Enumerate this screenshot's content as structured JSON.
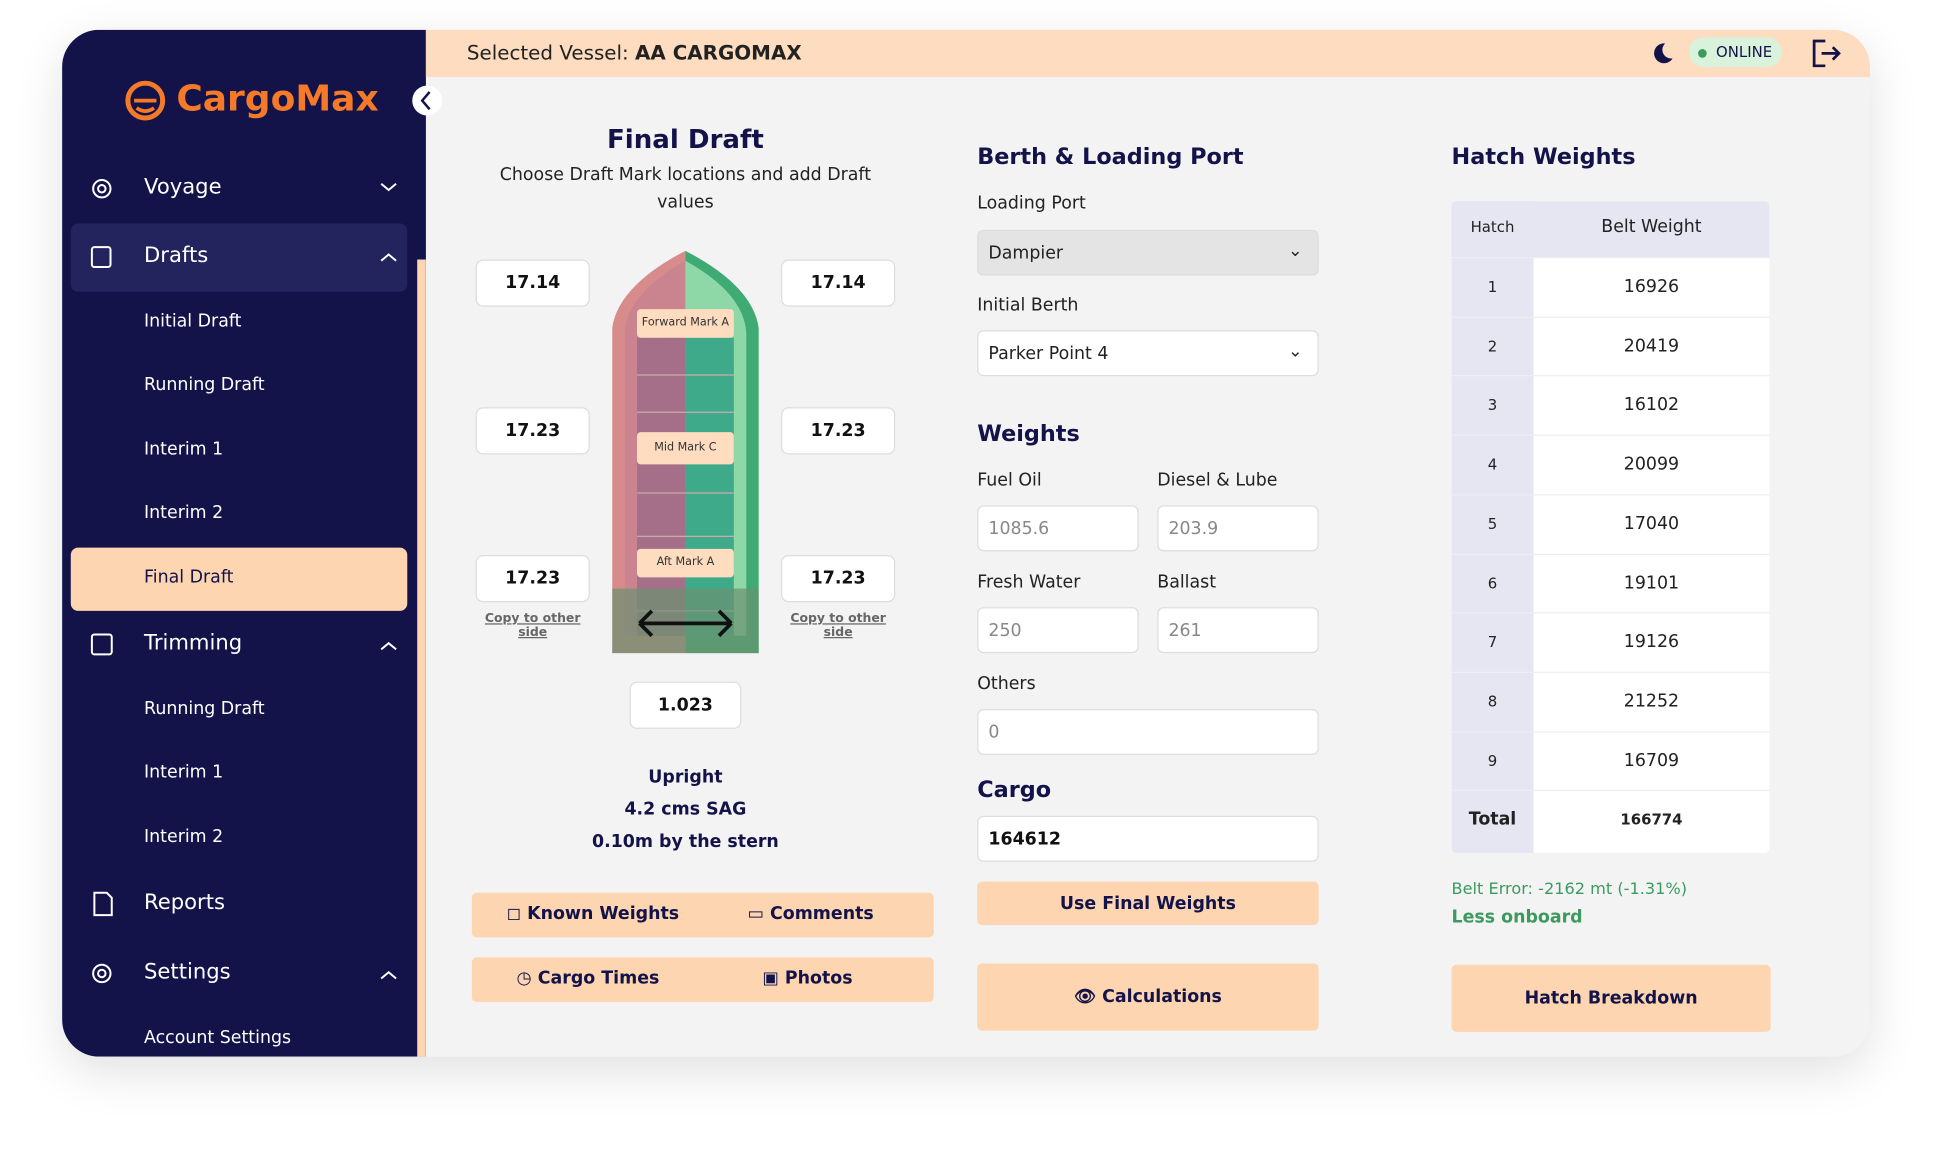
{
  "header": {
    "vessel_label": "Selected Vessel:",
    "vessel": "AA CARGOMAX",
    "status": "ONLINE"
  },
  "sidebar": {
    "brand": "CargoMax",
    "voyage": "Voyage",
    "drafts": "Drafts",
    "drafts_items": [
      "Initial Draft",
      "Running Draft",
      "Interim 1",
      "Interim 2",
      "Final Draft"
    ],
    "trimming": "Trimming",
    "trimming_items": [
      "Running Draft",
      "Interim 1",
      "Interim 2"
    ],
    "reports": "Reports",
    "settings": "Settings",
    "settings_items": [
      "Account Settings"
    ]
  },
  "draft": {
    "title": "Final Draft",
    "subtitle": "Choose Draft Mark locations and add Draft values",
    "forward": {
      "label": "Forward Mark A",
      "port": "17.14",
      "starboard": "17.14"
    },
    "mid": {
      "label": "Mid Mark C",
      "port": "17.23",
      "starboard": "17.23"
    },
    "aft": {
      "label": "Aft Mark A",
      "port": "17.23",
      "starboard": "17.23"
    },
    "copy_left": "Copy to other side",
    "copy_right": "Copy to other side",
    "density": "1.023",
    "status": [
      "Upright",
      "4.2 cms SAG",
      "0.10m by the stern"
    ],
    "buttons": [
      "Known Weights",
      "Comments",
      "Cargo Times",
      "Photos"
    ]
  },
  "berth": {
    "title": "Berth & Loading Port",
    "loading_port_label": "Loading Port",
    "loading_port": "Dampier",
    "initial_berth_label": "Initial Berth",
    "initial_berth": "Parker Point 4",
    "weights_title": "Weights",
    "fuel_oil_label": "Fuel Oil",
    "fuel_oil": "1085.6",
    "diesel_label": "Diesel & Lube",
    "diesel": "203.9",
    "fresh_water_label": "Fresh Water",
    "fresh_water": "250",
    "ballast_label": "Ballast",
    "ballast": "261",
    "others_label": "Others",
    "others": "0",
    "cargo_title": "Cargo",
    "cargo": "164612",
    "use_final_weights": "Use Final Weights",
    "calculations": "Calculations"
  },
  "hatch": {
    "title": "Hatch Weights",
    "headers": [
      "Hatch",
      "Belt Weight"
    ],
    "rows": [
      [
        "1",
        "16926"
      ],
      [
        "2",
        "20419"
      ],
      [
        "3",
        "16102"
      ],
      [
        "4",
        "20099"
      ],
      [
        "5",
        "17040"
      ],
      [
        "6",
        "19101"
      ],
      [
        "7",
        "19126"
      ],
      [
        "8",
        "21252"
      ],
      [
        "9",
        "16709"
      ]
    ],
    "total_label": "Total",
    "total": "166774",
    "belt_error": "Belt Error: -2162 mt (-1.31%)",
    "less_onboard": "Less onboard",
    "breakdown": "Hatch Breakdown"
  }
}
